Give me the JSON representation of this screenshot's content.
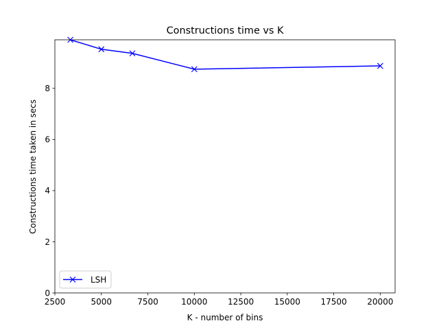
{
  "chart_data": {
    "type": "line",
    "title": "Constructions time vs K",
    "xlabel": "K - number of bins",
    "ylabel": "Constructions time taken in secs",
    "xlim": [
      2500,
      20800
    ],
    "ylim": [
      0,
      9.9
    ],
    "xticks": [
      2500,
      5000,
      7500,
      10000,
      12500,
      15000,
      17500,
      20000
    ],
    "yticks": [
      0,
      2,
      4,
      6,
      8
    ],
    "grid": false,
    "legend_position": "lower left",
    "series": [
      {
        "name": "LSH",
        "color": "#0000ff",
        "marker": "x",
        "x": [
          3333,
          5000,
          6667,
          10000,
          20000
        ],
        "y": [
          9.9,
          9.53,
          9.37,
          8.75,
          8.88
        ]
      }
    ]
  }
}
